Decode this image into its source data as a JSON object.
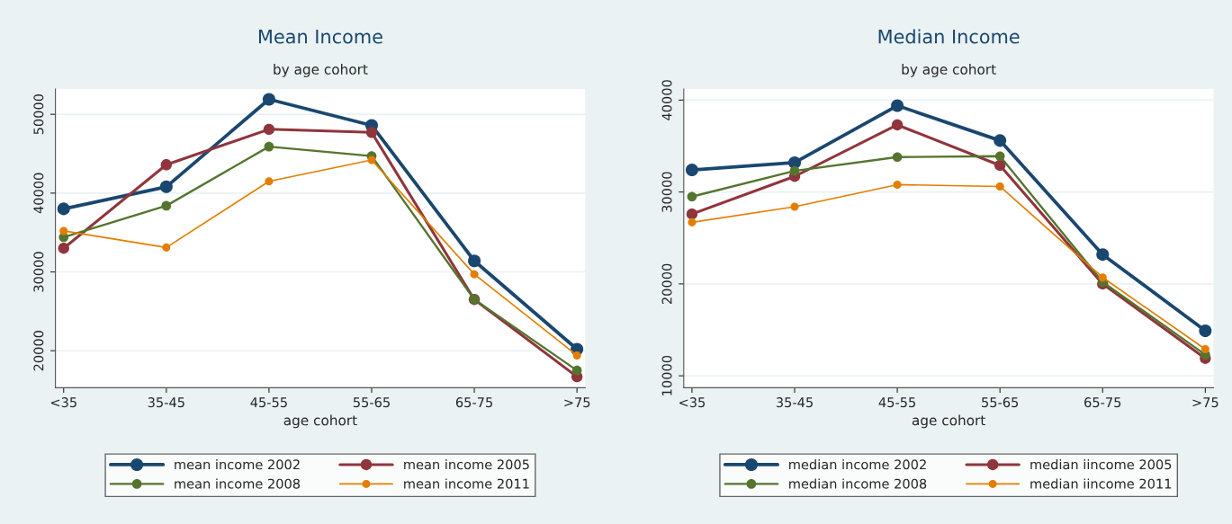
{
  "chart_data": [
    {
      "type": "line",
      "title": "Mean Income",
      "subtitle": "by age cohort",
      "xlabel": "age cohort",
      "categories": [
        "<35",
        "35-45",
        "45-55",
        "55-65",
        "65-75",
        ">75"
      ],
      "series": [
        {
          "name": "mean income 2002",
          "color": "#1a476f",
          "values": [
            38000,
            40800,
            51900,
            48600,
            31400,
            20200
          ]
        },
        {
          "name": "mean income 2005",
          "color": "#90353b",
          "values": [
            33000,
            43600,
            48100,
            47700,
            26500,
            16700
          ]
        },
        {
          "name": "mean income 2008",
          "color": "#55752f",
          "values": [
            34400,
            38400,
            45900,
            44700,
            26500,
            17500
          ]
        },
        {
          "name": "mean income 2011",
          "color": "#e37e00",
          "values": [
            35200,
            33100,
            41500,
            44200,
            29700,
            19400
          ]
        }
      ],
      "ylim": [
        15300,
        53200
      ],
      "yticks": [
        20000,
        30000,
        40000,
        50000
      ],
      "grid": "y",
      "legend": "bottom",
      "marker": "circle"
    },
    {
      "type": "line",
      "title": "Median Income",
      "subtitle": "by age cohort",
      "xlabel": "age cohort",
      "categories": [
        "<35",
        "35-45",
        "45-55",
        "55-65",
        "65-75",
        ">75"
      ],
      "series": [
        {
          "name": "median income 2002",
          "color": "#1a476f",
          "values": [
            32400,
            33200,
            39400,
            35600,
            23200,
            14900
          ]
        },
        {
          "name": "median iincome 2005",
          "color": "#90353b",
          "values": [
            27600,
            31700,
            37300,
            32900,
            20000,
            11900
          ]
        },
        {
          "name": "median income 2008",
          "color": "#55752f",
          "values": [
            29500,
            32300,
            33800,
            33900,
            20200,
            12300
          ]
        },
        {
          "name": "median iincome 2011",
          "color": "#e37e00",
          "values": [
            26700,
            28400,
            30800,
            30600,
            20700,
            12900
          ]
        }
      ],
      "ylim": [
        8700,
        41200
      ],
      "yticks": [
        10000,
        20000,
        30000,
        40000
      ],
      "grid": "y",
      "legend": "bottom",
      "marker": "circle"
    }
  ]
}
